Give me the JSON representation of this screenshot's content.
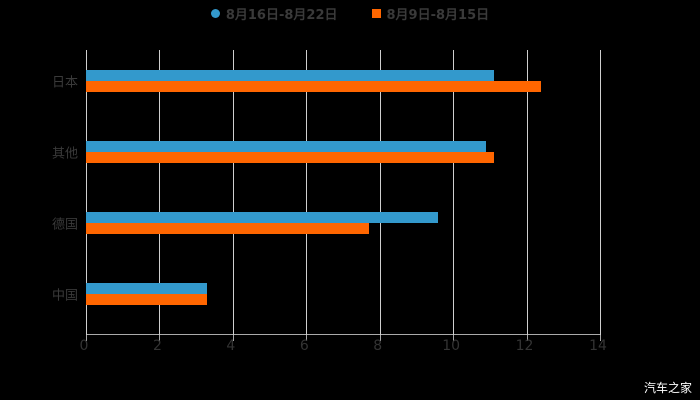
{
  "legend": [
    {
      "label": "8月16日-8月22日",
      "color": "#3399cc",
      "shape": "circle"
    },
    {
      "label": "8月9日-8月15日",
      "color": "#ff6600",
      "shape": "square"
    }
  ],
  "watermark": "汽车之家",
  "chart_data": {
    "type": "bar",
    "orientation": "horizontal",
    "title": "",
    "xlabel": "",
    "ylabel": "",
    "categories": [
      "日本",
      "其他",
      "德国",
      "中国"
    ],
    "series": [
      {
        "name": "8月16日-8月22日",
        "color": "#3399cc",
        "values": [
          11.1,
          10.9,
          9.6,
          3.3
        ]
      },
      {
        "name": "8月9日-8月15日",
        "color": "#ff6600",
        "values": [
          12.4,
          11.1,
          7.7,
          3.3
        ]
      }
    ],
    "xlim": [
      0,
      14
    ],
    "xticks": [
      "0",
      "2",
      "4",
      "6",
      "8",
      "10",
      "12",
      "14"
    ],
    "grid": true,
    "legend_position": "top"
  }
}
